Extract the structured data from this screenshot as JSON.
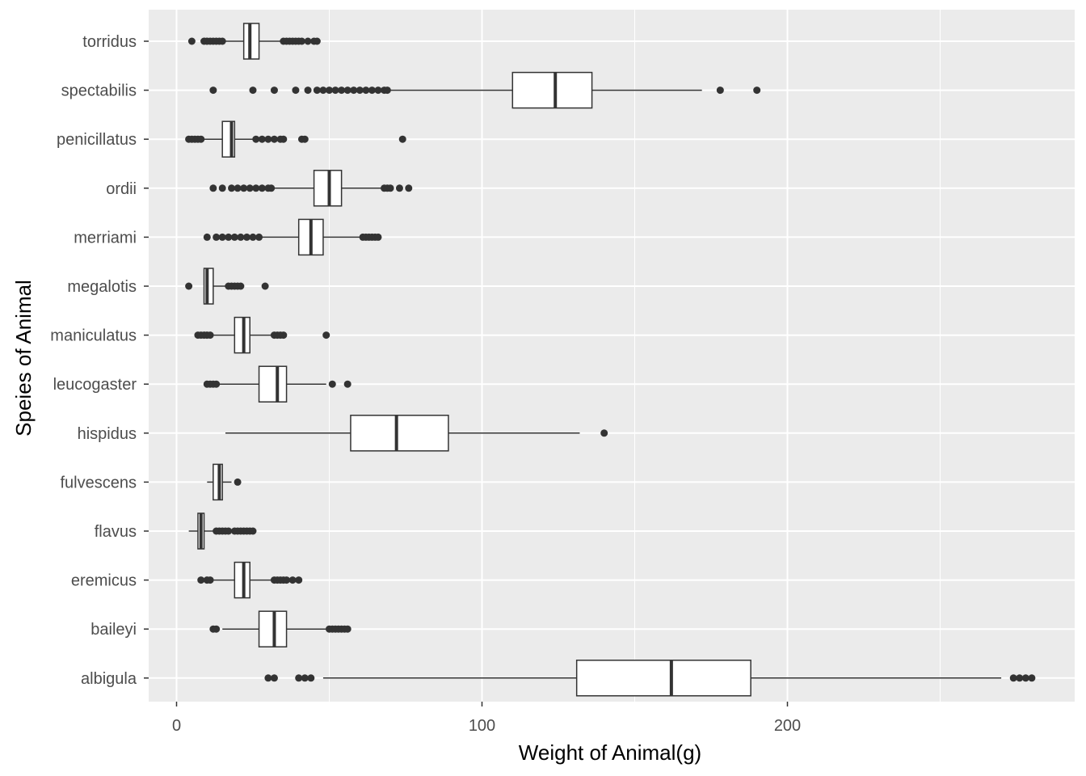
{
  "chart_data": {
    "type": "boxplot",
    "orientation": "horizontal",
    "xlabel": "Weight of Animal(g)",
    "ylabel": "Speies of Animal",
    "xlim": [
      -9,
      295
    ],
    "x_ticks": [
      0,
      100,
      200
    ],
    "x_tick_labels": [
      "0",
      "100",
      "200"
    ],
    "grid": true,
    "colors": {
      "panel_background": "#ebebeb",
      "grid_line": "#ffffff",
      "box_fill": "#ffffff",
      "box_stroke": "#333333",
      "outlier": "#333333",
      "tick_text": "#4d4d4d",
      "title_text": "#000000"
    },
    "categories": [
      "torridus",
      "spectabilis",
      "penicillatus",
      "ordii",
      "merriami",
      "megalotis",
      "maniculatus",
      "leucogaster",
      "hispidus",
      "fulvescens",
      "flavus",
      "eremicus",
      "baileyi",
      "albigula"
    ],
    "boxes": [
      {
        "species": "torridus",
        "whisker_low": 12,
        "q1": 22,
        "median": 24,
        "q3": 27,
        "whisker_high": 34,
        "outliers": [
          5,
          9,
          10,
          11,
          12,
          13,
          14,
          15,
          35,
          36,
          37,
          38,
          39,
          40,
          41,
          43,
          45,
          46
        ]
      },
      {
        "species": "spectabilis",
        "whisker_low": 70,
        "q1": 110,
        "median": 124,
        "q3": 136,
        "whisker_high": 172,
        "outliers": [
          12,
          25,
          32,
          39,
          43,
          46,
          48,
          50,
          52,
          54,
          56,
          58,
          60,
          62,
          64,
          66,
          68,
          69,
          178,
          190
        ]
      },
      {
        "species": "penicillatus",
        "whisker_low": 9,
        "q1": 15,
        "median": 18,
        "q3": 19,
        "whisker_high": 25,
        "outliers": [
          4,
          5,
          6,
          7,
          8,
          26,
          28,
          30,
          32,
          34,
          35,
          41,
          42,
          74
        ]
      },
      {
        "species": "ordii",
        "whisker_low": 32,
        "q1": 45,
        "median": 50,
        "q3": 54,
        "whisker_high": 67,
        "outliers": [
          12,
          15,
          18,
          20,
          22,
          24,
          26,
          28,
          30,
          31,
          68,
          69,
          70,
          73,
          76
        ]
      },
      {
        "species": "merriami",
        "whisker_low": 28,
        "q1": 40,
        "median": 44,
        "q3": 48,
        "whisker_high": 60,
        "outliers": [
          10,
          13,
          15,
          17,
          19,
          21,
          23,
          25,
          27,
          61,
          62,
          63,
          64,
          65,
          66
        ]
      },
      {
        "species": "megalotis",
        "whisker_low": 9,
        "q1": 9,
        "median": 10,
        "q3": 12,
        "whisker_high": 17,
        "outliers": [
          4,
          17,
          18,
          19,
          20,
          21,
          29
        ]
      },
      {
        "species": "maniculatus",
        "whisker_low": 12,
        "q1": 19,
        "median": 22,
        "q3": 24,
        "whisker_high": 31,
        "outliers": [
          7,
          8,
          9,
          10,
          11,
          32,
          33,
          34,
          35,
          49
        ]
      },
      {
        "species": "leucogaster",
        "whisker_low": 14,
        "q1": 27,
        "median": 33,
        "q3": 36,
        "whisker_high": 49,
        "outliers": [
          10,
          11,
          12,
          13,
          51,
          56
        ]
      },
      {
        "species": "hispidus",
        "whisker_low": 16,
        "q1": 57,
        "median": 72,
        "q3": 89,
        "whisker_high": 132,
        "outliers": [
          140
        ]
      },
      {
        "species": "fulvescens",
        "whisker_low": 10,
        "q1": 12,
        "median": 14,
        "q3": 15,
        "whisker_high": 18,
        "outliers": [
          20
        ]
      },
      {
        "species": "flavus",
        "whisker_low": 4,
        "q1": 7,
        "median": 8,
        "q3": 9,
        "whisker_high": 12,
        "outliers": [
          13,
          14,
          15,
          16,
          17,
          19,
          20,
          21,
          22,
          23,
          24,
          25
        ]
      },
      {
        "species": "eremicus",
        "whisker_low": 12,
        "q1": 19,
        "median": 22,
        "q3": 24,
        "whisker_high": 31,
        "outliers": [
          8,
          10,
          11,
          32,
          33,
          34,
          35,
          36,
          38,
          40
        ]
      },
      {
        "species": "baileyi",
        "whisker_low": 15,
        "q1": 27,
        "median": 32,
        "q3": 36,
        "whisker_high": 49,
        "outliers": [
          12,
          13,
          50,
          51,
          52,
          53,
          54,
          55,
          56
        ]
      },
      {
        "species": "albigula",
        "whisker_low": 48,
        "q1": 131,
        "median": 162,
        "q3": 188,
        "whisker_high": 270,
        "outliers": [
          30,
          32,
          40,
          42,
          44,
          274,
          276,
          278,
          280
        ]
      }
    ]
  }
}
